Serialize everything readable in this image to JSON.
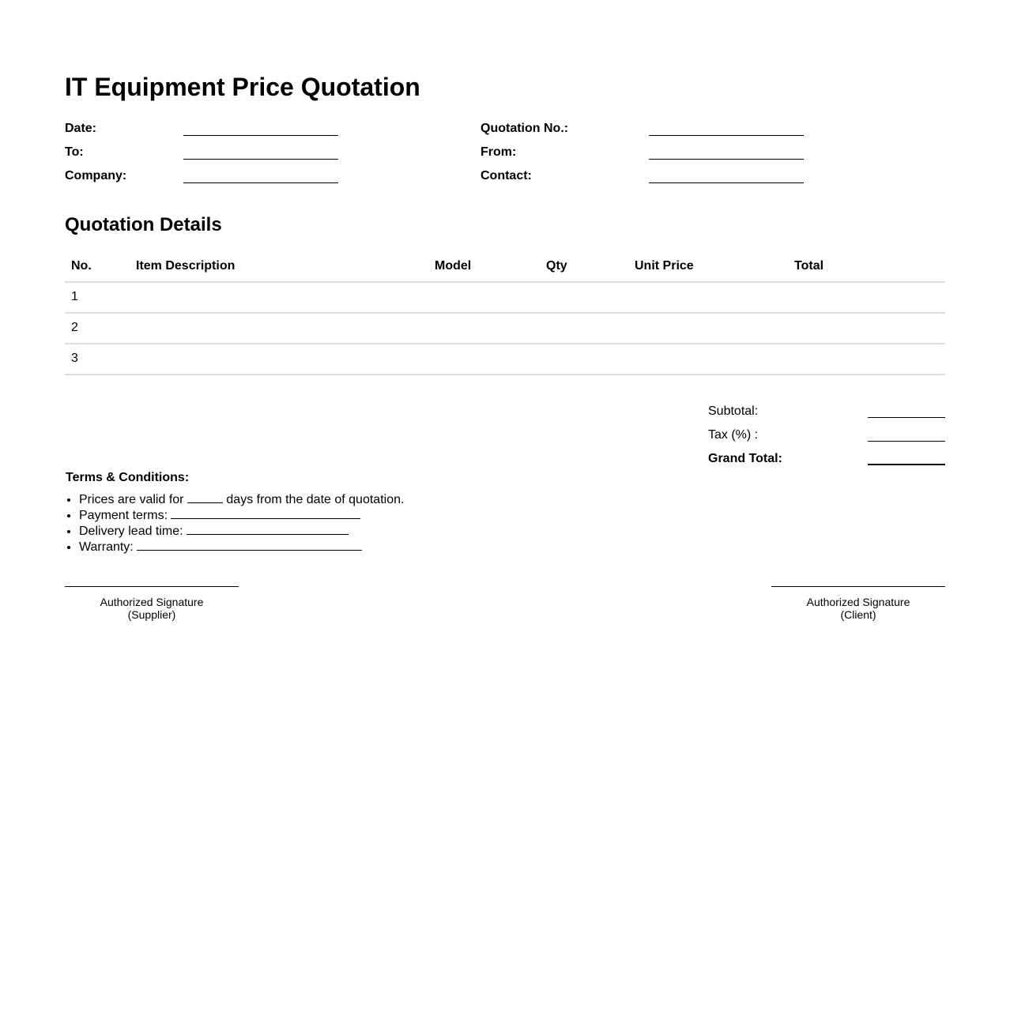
{
  "title": "IT Equipment Price Quotation",
  "fields_left": [
    {
      "label": "Date:"
    },
    {
      "label": "To:"
    },
    {
      "label": "Company:"
    }
  ],
  "fields_right": [
    {
      "label": "Quotation No.:"
    },
    {
      "label": "From:"
    },
    {
      "label": "Contact:"
    }
  ],
  "details_heading": "Quotation Details",
  "table": {
    "headers": [
      "No.",
      "Item Description",
      "Model",
      "Qty",
      "Unit Price",
      "Total"
    ],
    "rows": [
      [
        "1",
        "",
        "",
        "",
        "",
        ""
      ],
      [
        "2",
        "",
        "",
        "",
        "",
        ""
      ],
      [
        "3",
        "",
        "",
        "",
        "",
        ""
      ]
    ]
  },
  "totals": {
    "subtotal_label": "Subtotal:",
    "tax_label": "Tax (%) :",
    "grand_total_label": "Grand Total:"
  },
  "terms": {
    "heading": "Terms & Conditions:",
    "valid_prefix": "Prices are valid for",
    "valid_suffix": "days from the date of quotation.",
    "payment": "Payment terms:",
    "delivery": "Delivery lead time:",
    "warranty": "Warranty:"
  },
  "signatures": {
    "supplier_line1": "Authorized Signature",
    "supplier_line2": "(Supplier)",
    "client_line1": "Authorized Signature",
    "client_line2": "(Client)"
  }
}
